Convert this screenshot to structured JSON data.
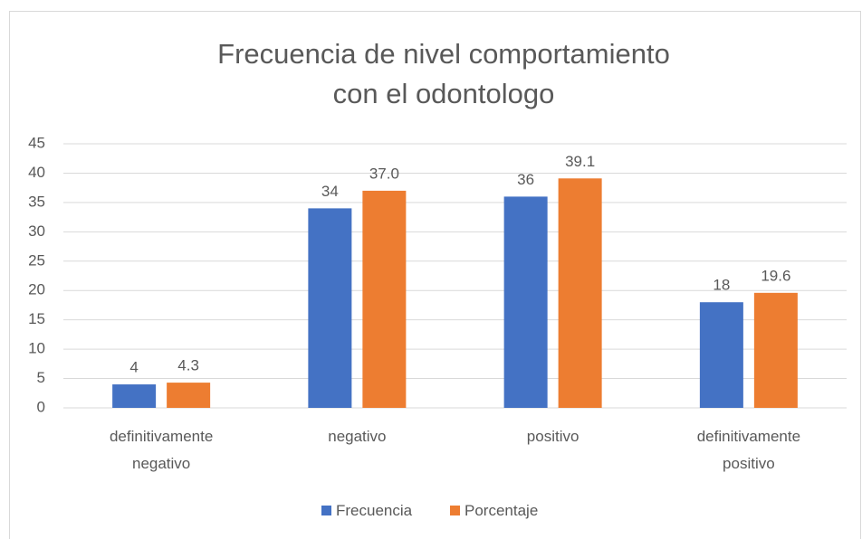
{
  "chart_data": {
    "type": "bar",
    "title": "Frecuencia de nivel comportamiento con el odontologo",
    "categories": [
      "definitivamente negativo",
      "negativo",
      "positivo",
      "definitivamente positivo"
    ],
    "series": [
      {
        "name": "Frecuencia",
        "color": "#4472c4",
        "values": [
          4,
          34,
          36,
          18
        ]
      },
      {
        "name": "Porcentaje",
        "color": "#ed7d31",
        "values": [
          4.3,
          37.0,
          39.1,
          19.6
        ],
        "value_labels": [
          "4.3",
          "37.0",
          "39.1",
          "19.6"
        ]
      }
    ],
    "ylim": [
      0,
      45
    ],
    "yticks": [
      0,
      5,
      10,
      15,
      20,
      25,
      30,
      35,
      40,
      45
    ],
    "grid": true,
    "legend": "bottom"
  }
}
